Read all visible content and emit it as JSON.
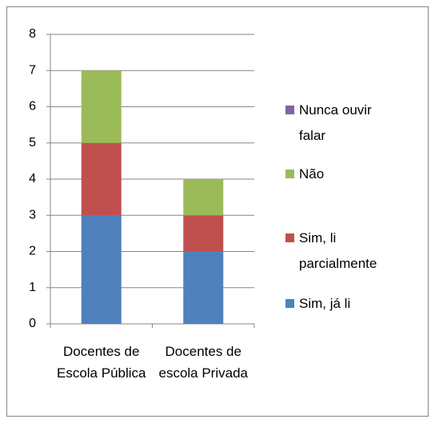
{
  "chart_data": {
    "type": "stacked_bar",
    "categories": [
      "Docentes de Escola Pública",
      "Docentes de escola Privada"
    ],
    "series": [
      {
        "name": "Sim, já li",
        "color": "#4f81bd",
        "values": [
          3,
          2
        ]
      },
      {
        "name": "Sim, li parcialmente",
        "color": "#c0504d",
        "values": [
          2,
          1
        ]
      },
      {
        "name": "Não",
        "color": "#9bbb59",
        "values": [
          2,
          1
        ]
      },
      {
        "name": "Nunca ouvir falar",
        "color": "#8064a2",
        "values": [
          0,
          0
        ]
      }
    ],
    "ylim": [
      0,
      8
    ],
    "yticks": [
      0,
      1,
      2,
      3,
      4,
      5,
      6,
      7,
      8
    ],
    "grid": true,
    "legend": "right"
  }
}
